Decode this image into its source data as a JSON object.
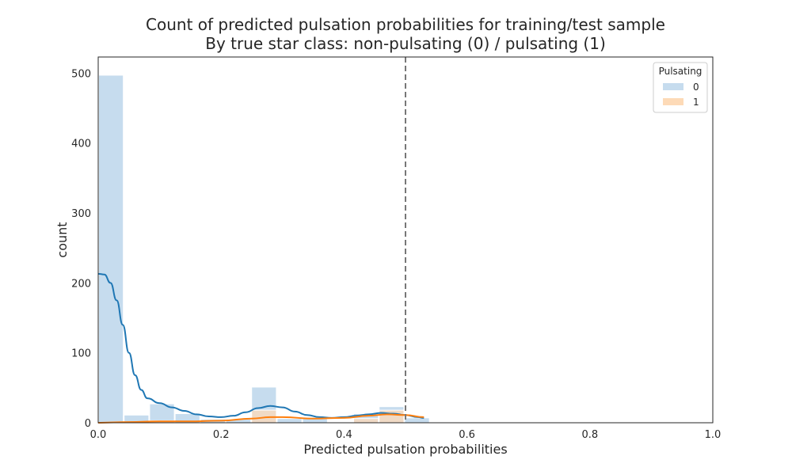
{
  "chart_data": {
    "type": "bar",
    "title_line1": "Count of predicted pulsation probabilities for training/test sample",
    "title_line2": "By true star class: non-pulsating (0) / pulsating (1)",
    "xlabel": "Predicted pulsation probabilities",
    "ylabel": "count",
    "xlim": [
      0.0,
      1.0
    ],
    "ylim": [
      0,
      523
    ],
    "xticks": [
      0.0,
      0.2,
      0.4,
      0.6,
      0.8,
      1.0
    ],
    "xtick_labels": [
      "0.0",
      "0.2",
      "0.4",
      "0.6",
      "0.8",
      "1.0"
    ],
    "yticks": [
      0,
      100,
      200,
      300,
      400,
      500
    ],
    "ytick_labels": [
      "0",
      "100",
      "200",
      "300",
      "400",
      "500"
    ],
    "threshold": 0.5,
    "bin_width": 0.0415,
    "bin_starts": [
      0.0,
      0.0415,
      0.083,
      0.1245,
      0.166,
      0.2075,
      0.249,
      0.2905,
      0.332,
      0.3735,
      0.415,
      0.4565,
      0.498
    ],
    "legend": {
      "title": "Pulsating",
      "position": "top-right"
    },
    "series": [
      {
        "name": "0",
        "bar_color": "#c6dcee",
        "line_color": "#1f77b4",
        "counts": [
          497,
          11,
          27,
          13,
          5,
          5,
          51,
          6,
          6,
          0,
          13,
          23,
          7
        ],
        "kde": [
          [
            0.0,
            213
          ],
          [
            0.01,
            212
          ],
          [
            0.02,
            200
          ],
          [
            0.03,
            175
          ],
          [
            0.04,
            140
          ],
          [
            0.05,
            100
          ],
          [
            0.06,
            68
          ],
          [
            0.07,
            47
          ],
          [
            0.08,
            35
          ],
          [
            0.1,
            28
          ],
          [
            0.12,
            22
          ],
          [
            0.14,
            17
          ],
          [
            0.16,
            12
          ],
          [
            0.18,
            9
          ],
          [
            0.2,
            8
          ],
          [
            0.22,
            10
          ],
          [
            0.24,
            15
          ],
          [
            0.26,
            21
          ],
          [
            0.28,
            24
          ],
          [
            0.3,
            22
          ],
          [
            0.32,
            16
          ],
          [
            0.34,
            11
          ],
          [
            0.36,
            8
          ],
          [
            0.38,
            7
          ],
          [
            0.4,
            8
          ],
          [
            0.42,
            10
          ],
          [
            0.44,
            12
          ],
          [
            0.46,
            14
          ],
          [
            0.48,
            13
          ],
          [
            0.5,
            11
          ],
          [
            0.52,
            8
          ],
          [
            0.53,
            7
          ]
        ]
      },
      {
        "name": "1",
        "bar_color": "#fddab7",
        "line_color": "#ff7f0e",
        "counts": [
          0,
          0,
          3,
          0,
          0,
          0,
          18,
          0,
          0,
          0,
          6,
          18,
          0
        ],
        "kde": [
          [
            0.0,
            0
          ],
          [
            0.05,
            1
          ],
          [
            0.1,
            2
          ],
          [
            0.15,
            2
          ],
          [
            0.2,
            3
          ],
          [
            0.25,
            6
          ],
          [
            0.28,
            8
          ],
          [
            0.3,
            8
          ],
          [
            0.35,
            6
          ],
          [
            0.4,
            7
          ],
          [
            0.44,
            10
          ],
          [
            0.47,
            12
          ],
          [
            0.5,
            11
          ],
          [
            0.53,
            8
          ]
        ]
      }
    ]
  }
}
